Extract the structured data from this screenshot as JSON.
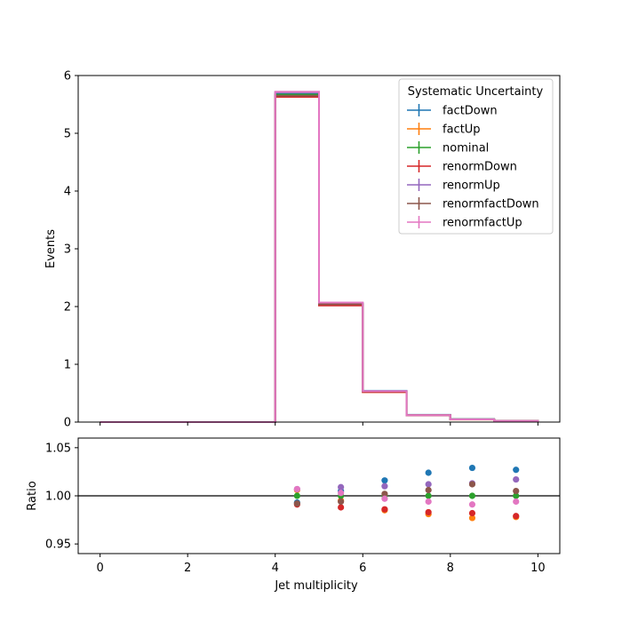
{
  "chart_data": {
    "type": "line",
    "xlabel": "Jet multiplicity",
    "x_ticks": [
      "0",
      "2",
      "4",
      "6",
      "8",
      "10"
    ],
    "xlim": [
      -0.5,
      10.5
    ],
    "bin_edges": [
      0,
      1,
      2,
      3,
      4,
      5,
      6,
      7,
      8,
      9,
      10
    ],
    "top_panel": {
      "ylabel": "Events",
      "ylim": [
        0,
        6
      ],
      "y_ticks": [
        "0",
        "1",
        "2",
        "3",
        "4",
        "5",
        "6"
      ],
      "legend_title": "Systematic Uncertainty",
      "legend_position": "top-right"
    },
    "ratio_panel": {
      "ylabel": "Ratio",
      "ylim": [
        0.94,
        1.06
      ],
      "y_ticks": [
        "0.95",
        "1.00",
        "1.05"
      ],
      "reference_line": 1.0,
      "bin_centers": [
        4.5,
        5.5,
        6.5,
        7.5,
        8.5,
        9.5
      ]
    },
    "series": [
      {
        "name": "factDown",
        "color": "#1f77b4",
        "values": [
          0,
          0,
          0,
          0,
          5.68,
          2.05,
          0.54,
          0.125,
          0.05,
          0.02
        ],
        "ratio": [
          0.993,
          1.005,
          1.016,
          1.024,
          1.029,
          1.027
        ]
      },
      {
        "name": "factUp",
        "color": "#ff7f0e",
        "values": [
          0,
          0,
          0,
          0,
          5.66,
          2.03,
          0.52,
          0.12,
          0.045,
          0.02
        ],
        "ratio": [
          1.006,
          0.995,
          0.985,
          0.981,
          0.977,
          0.978
        ]
      },
      {
        "name": "nominal",
        "color": "#2ca02c",
        "values": [
          0,
          0,
          0,
          0,
          5.67,
          2.04,
          0.53,
          0.12,
          0.048,
          0.02
        ],
        "ratio": [
          1.0,
          1.0,
          1.0,
          1.0,
          1.0,
          1.0
        ]
      },
      {
        "name": "renormDown",
        "color": "#d62728",
        "values": [
          0,
          0,
          0,
          0,
          5.63,
          2.02,
          0.52,
          0.118,
          0.046,
          0.019
        ],
        "ratio": [
          0.991,
          0.988,
          0.986,
          0.983,
          0.982,
          0.979
        ]
      },
      {
        "name": "renormUp",
        "color": "#9467bd",
        "values": [
          0,
          0,
          0,
          0,
          5.71,
          2.06,
          0.535,
          0.122,
          0.049,
          0.021
        ],
        "ratio": [
          1.007,
          1.009,
          1.01,
          1.012,
          1.013,
          1.017
        ]
      },
      {
        "name": "renormfactDown",
        "color": "#8c564b",
        "values": [
          0,
          0,
          0,
          0,
          5.65,
          2.04,
          0.53,
          0.121,
          0.049,
          0.021
        ],
        "ratio": [
          0.992,
          0.994,
          1.002,
          1.006,
          1.012,
          1.005
        ]
      },
      {
        "name": "renormfactUp",
        "color": "#e377c2",
        "values": [
          0,
          0,
          0,
          0,
          5.72,
          2.07,
          0.535,
          0.12,
          0.047,
          0.02
        ],
        "ratio": [
          1.007,
          1.003,
          0.997,
          0.994,
          0.991,
          0.994
        ]
      }
    ]
  }
}
